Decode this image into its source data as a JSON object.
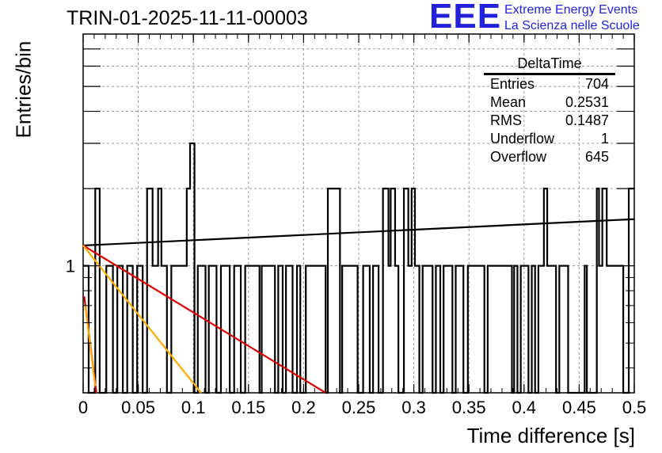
{
  "chart_data": {
    "type": "bar",
    "title": "TRIN-01-2025-11-11-00003",
    "xlabel": "Time difference [s]",
    "ylabel": "Entries/bin",
    "xlim": [
      0,
      0.5
    ],
    "ylim": [
      0.32,
      8.0
    ],
    "yscale": "log",
    "grid": true,
    "xticks": [
      "0",
      "0.05",
      "0.1",
      "0.15",
      "0.2",
      "0.25",
      "0.3",
      "0.35",
      "0.4",
      "0.45",
      "0.5"
    ],
    "xtick_values": [
      0,
      0.05,
      0.1,
      0.15,
      0.2,
      0.25,
      0.3,
      0.35,
      0.4,
      0.45,
      0.5
    ],
    "yticks": [
      "1"
    ],
    "ytick_values": [
      1
    ],
    "histogram": {
      "name": "DeltaTime",
      "bin_edges": [
        0,
        0.005,
        0.011,
        0.015,
        0.021,
        0.027,
        0.031,
        0.036,
        0.04,
        0.045,
        0.049,
        0.054,
        0.058,
        0.063,
        0.068,
        0.071,
        0.076,
        0.08,
        0.094,
        0.097,
        0.101,
        0.104,
        0.111,
        0.114,
        0.121,
        0.125,
        0.133,
        0.137,
        0.143,
        0.147,
        0.16,
        0.162,
        0.174,
        0.177,
        0.181,
        0.184,
        0.19,
        0.194,
        0.197,
        0.202,
        0.22,
        0.222,
        0.233,
        0.235,
        0.249,
        0.254,
        0.26,
        0.263,
        0.268,
        0.272,
        0.277,
        0.279,
        0.283,
        0.286,
        0.291,
        0.295,
        0.298,
        0.301,
        0.305,
        0.308,
        0.317,
        0.32,
        0.324,
        0.327,
        0.335,
        0.338,
        0.345,
        0.349,
        0.364,
        0.367,
        0.389,
        0.391,
        0.394,
        0.397,
        0.404,
        0.407,
        0.41,
        0.413,
        0.418,
        0.421,
        0.429,
        0.432,
        0.44,
        0.455,
        0.457,
        0.466,
        0.468,
        0.471,
        0.475,
        0.49,
        0.495,
        0.5
      ],
      "counts": [
        1,
        0,
        2,
        0,
        1,
        0,
        1,
        0,
        1,
        0,
        1,
        0,
        2,
        1,
        2,
        1,
        0,
        1,
        2,
        3,
        0,
        1,
        0,
        1,
        0,
        1,
        0,
        1,
        0,
        1,
        0,
        1,
        0,
        1,
        0,
        1,
        0,
        1,
        0,
        1,
        0,
        2,
        0,
        1,
        0,
        1,
        0,
        1,
        0,
        2,
        1,
        2,
        1,
        0,
        2,
        1,
        2,
        1,
        0,
        1,
        0,
        1,
        0,
        1,
        0,
        1,
        0,
        1,
        0,
        1,
        0,
        1,
        0,
        1,
        0,
        1,
        0,
        1,
        2,
        1,
        0,
        1,
        0,
        1,
        0,
        2,
        1,
        2,
        1,
        0,
        2
      ]
    },
    "fit_lines": [
      {
        "name": "fit-black",
        "color": "#000000",
        "x": [
          0,
          0.5
        ],
        "y": [
          1.2,
          1.52
        ]
      },
      {
        "name": "fit-red",
        "color": "#dd0000",
        "x": [
          0,
          0.22
        ],
        "y": [
          1.2,
          0.32
        ]
      },
      {
        "name": "fit-orange",
        "color": "#ffaa00",
        "x": [
          0,
          0.107
        ],
        "y": [
          1.2,
          0.32
        ]
      },
      {
        "name": "fit-darkred",
        "color": "#cc0000",
        "x": [
          0.001,
          0.012
        ],
        "y": [
          0.76,
          0.32
        ]
      },
      {
        "name": "fit-orange2",
        "color": "#ffaa00",
        "x": [
          0.002,
          0.011
        ],
        "y": [
          0.7,
          0.34
        ]
      }
    ],
    "stats": {
      "title": "DeltaTime",
      "rows": [
        {
          "label": "Entries",
          "value": "704"
        },
        {
          "label": "Mean",
          "value": "0.2531"
        },
        {
          "label": "RMS",
          "value": "0.1487"
        },
        {
          "label": "Underflow",
          "value": "1"
        },
        {
          "label": "Overflow",
          "value": "645"
        }
      ]
    }
  },
  "logo": {
    "mark": "EEE",
    "line1": "Extreme Energy Events",
    "line2": "La Scienza nelle Scuole"
  }
}
